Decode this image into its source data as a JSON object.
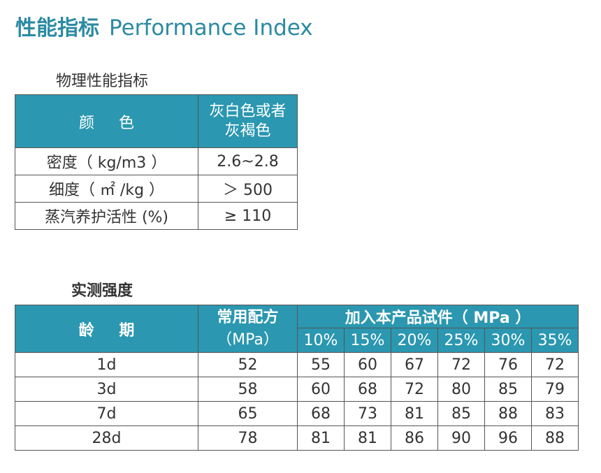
{
  "title": {
    "cn": "性能指标",
    "en": "Performance Index"
  },
  "physical": {
    "heading": "物理性能指标",
    "color_label": "颜 色",
    "color_value_line1": "灰白色或者",
    "color_value_line2": "灰褐色",
    "rows": [
      {
        "label": "密度（ kg/m3 ）",
        "value": "2.6~2.8"
      },
      {
        "label": "细度（ ㎡ /kg ）",
        "value": "＞ 500"
      },
      {
        "label": "蒸汽养护活性 (%)",
        "value": "≥ 110"
      }
    ],
    "colors": {
      "header_bg": "#2b97b0",
      "header_text": "#ffffff",
      "border": "#555555"
    }
  },
  "strength": {
    "heading": "实测强度",
    "age_header": "龄 期",
    "std_header_line1": "常用配方",
    "std_header_line2": "（MPa）",
    "group_header": "加入本产品试件（ MPa ）",
    "percents": [
      "10%",
      "15%",
      "20%",
      "25%",
      "30%",
      "35%"
    ],
    "rows": [
      {
        "age": "1d",
        "std": "52",
        "vals": [
          "55",
          "60",
          "67",
          "72",
          "76",
          "72"
        ]
      },
      {
        "age": "3d",
        "std": "58",
        "vals": [
          "60",
          "68",
          "72",
          "80",
          "85",
          "79"
        ]
      },
      {
        "age": "7d",
        "std": "65",
        "vals": [
          "68",
          "73",
          "81",
          "85",
          "88",
          "83"
        ]
      },
      {
        "age": "28d",
        "std": "78",
        "vals": [
          "81",
          "81",
          "86",
          "90",
          "96",
          "88"
        ]
      }
    ]
  },
  "accent_color": "#2b8aa3"
}
